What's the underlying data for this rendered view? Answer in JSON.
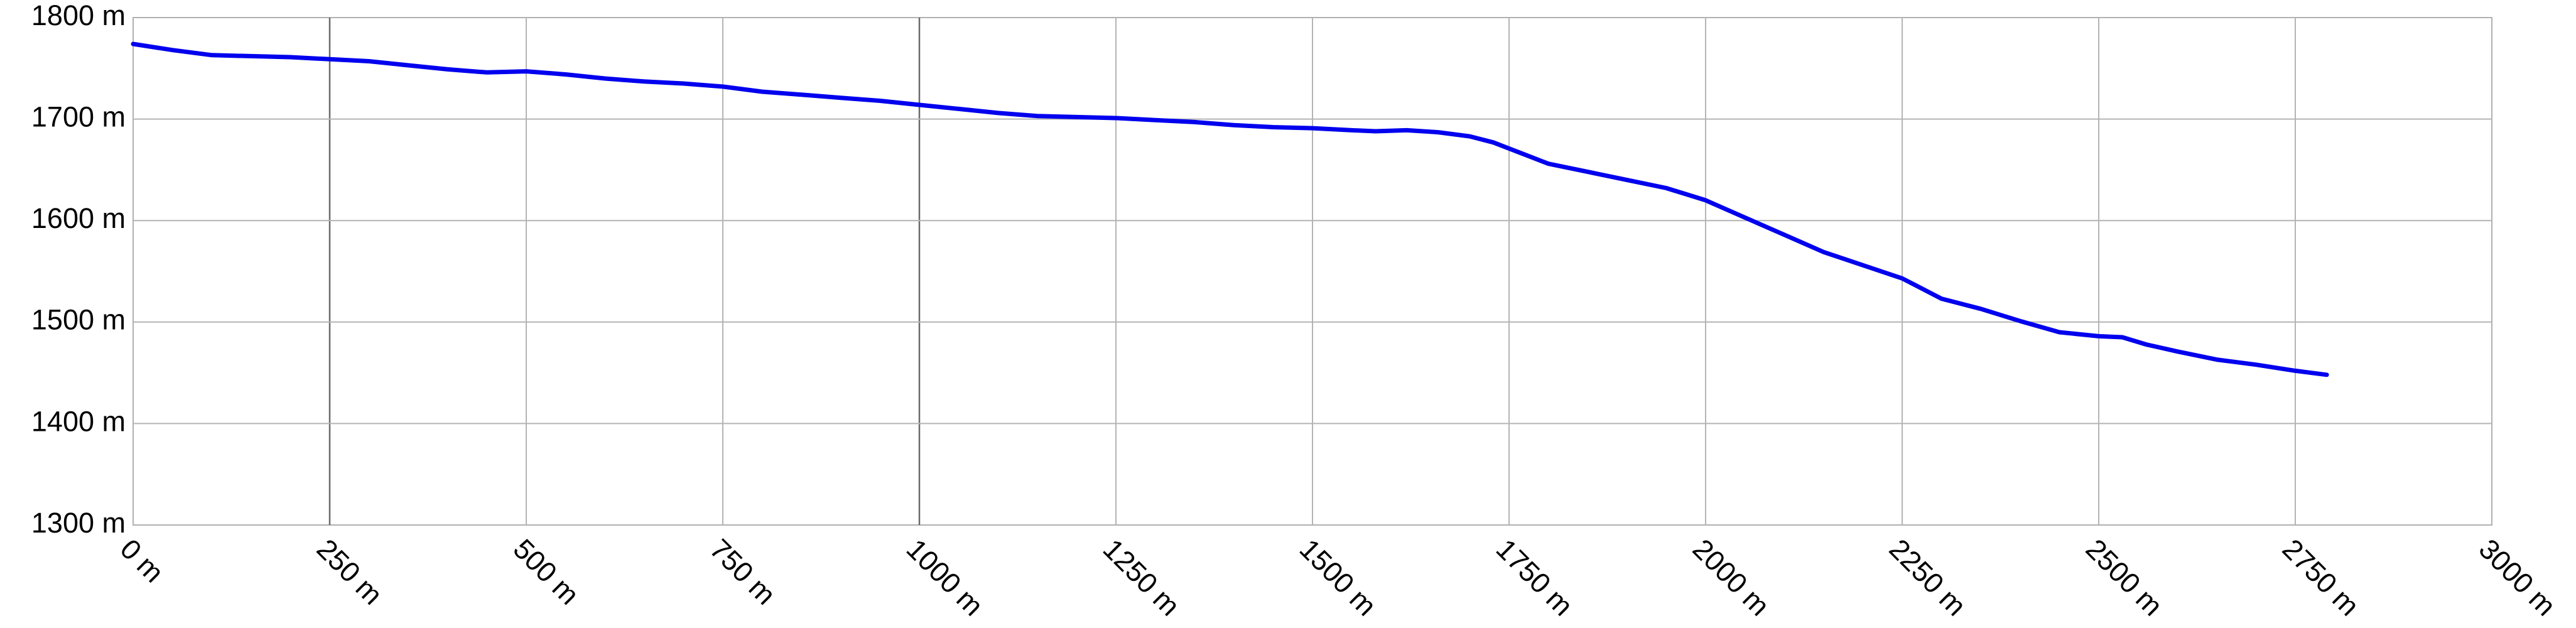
{
  "chart_data": {
    "type": "line",
    "title": "",
    "xlabel": "",
    "ylabel": "",
    "xlim": [
      0,
      3000
    ],
    "ylim": [
      1300,
      1800
    ],
    "grid": true,
    "legend": "none",
    "x_ticks": [
      {
        "value": 0,
        "label": "0 m"
      },
      {
        "value": 250,
        "label": "250 m"
      },
      {
        "value": 500,
        "label": "500 m"
      },
      {
        "value": 750,
        "label": "750 m"
      },
      {
        "value": 1000,
        "label": "1000 m"
      },
      {
        "value": 1250,
        "label": "1250 m"
      },
      {
        "value": 1500,
        "label": "1500 m"
      },
      {
        "value": 1750,
        "label": "1750 m"
      },
      {
        "value": 2000,
        "label": "2000 m"
      },
      {
        "value": 2250,
        "label": "2250 m"
      },
      {
        "value": 2500,
        "label": "2500 m"
      },
      {
        "value": 2750,
        "label": "2750 m"
      },
      {
        "value": 3000,
        "label": "3000 m"
      }
    ],
    "y_ticks": [
      {
        "value": 1300,
        "label": "1300 m"
      },
      {
        "value": 1400,
        "label": "1400 m"
      },
      {
        "value": 1500,
        "label": "1500 m"
      },
      {
        "value": 1600,
        "label": "1600 m"
      },
      {
        "value": 1700,
        "label": "1700 m"
      },
      {
        "value": 1800,
        "label": "1800 m"
      }
    ],
    "series": [
      {
        "color": "#0000ee",
        "x": [
          0,
          50,
          100,
          150,
          200,
          250,
          300,
          350,
          400,
          450,
          500,
          550,
          600,
          650,
          700,
          750,
          800,
          850,
          900,
          950,
          1000,
          1050,
          1100,
          1150,
          1200,
          1250,
          1300,
          1350,
          1400,
          1450,
          1500,
          1550,
          1580,
          1620,
          1660,
          1700,
          1730,
          1760,
          1800,
          1850,
          1900,
          1950,
          2000,
          2050,
          2100,
          2150,
          2200,
          2250,
          2300,
          2350,
          2400,
          2450,
          2500,
          2530,
          2560,
          2600,
          2650,
          2700,
          2750,
          2790
        ],
        "values": [
          1774,
          1768,
          1763,
          1762,
          1761,
          1759,
          1757,
          1753,
          1749,
          1746,
          1747,
          1744,
          1740,
          1737,
          1735,
          1732,
          1727,
          1724,
          1721,
          1718,
          1714,
          1710,
          1706,
          1703,
          1702,
          1701,
          1699,
          1697,
          1694,
          1692,
          1691,
          1689,
          1688,
          1689,
          1687,
          1683,
          1677,
          1668,
          1656,
          1648,
          1640,
          1632,
          1620,
          1603,
          1586,
          1569,
          1556,
          1543,
          1523,
          1513,
          1501,
          1490,
          1486,
          1485,
          1478,
          1471,
          1463,
          1458,
          1452,
          1448
        ]
      }
    ]
  }
}
